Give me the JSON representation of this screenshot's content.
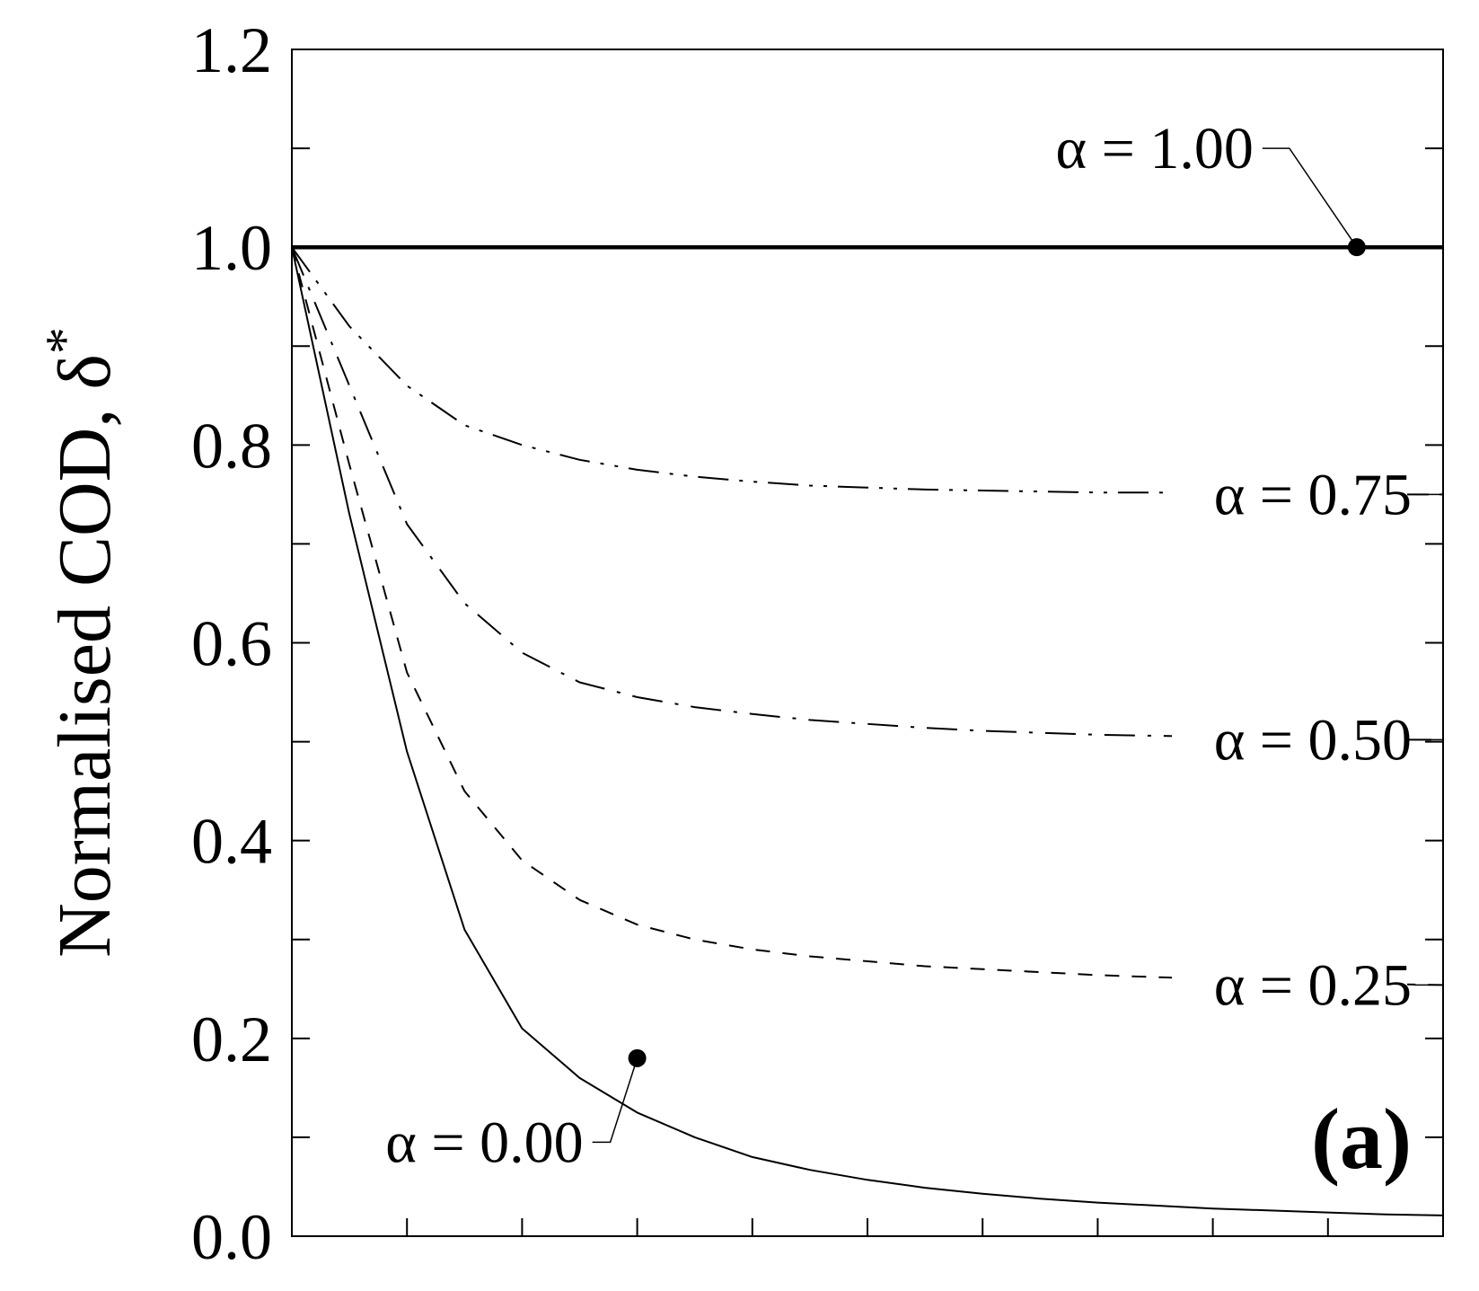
{
  "chart_data": {
    "type": "line",
    "title": "",
    "xlabel": "",
    "ylabel": "Normalised COD, δ",
    "ylabel_superscript": "*",
    "ylim": [
      0,
      1.2
    ],
    "xlim": [
      0,
      10
    ],
    "yticks": [
      "0.0",
      "0.2",
      "0.4",
      "0.6",
      "0.8",
      "1.0",
      "1.2"
    ],
    "grid": false,
    "legend": "none",
    "panel_label": "(a)",
    "x": [
      0,
      0.5,
      1,
      1.5,
      2,
      2.5,
      3,
      3.5,
      4,
      4.5,
      5,
      5.5,
      6,
      6.5,
      7,
      7.5,
      8,
      8.5,
      9,
      9.5,
      10
    ],
    "series": [
      {
        "name": "α = 1.00",
        "style": "solid-thick",
        "values": [
          1.0,
          1.0,
          1.0,
          1.0,
          1.0,
          1.0,
          1.0,
          1.0,
          1.0,
          1.0,
          1.0,
          1.0,
          1.0,
          1.0,
          1.0,
          1.0,
          1.0,
          1.0,
          1.0,
          1.0,
          1.0
        ]
      },
      {
        "name": "α = 0.75",
        "style": "dash-dot-dot",
        "values": [
          1.0,
          0.92,
          0.86,
          0.82,
          0.8,
          0.785,
          0.775,
          0.768,
          0.763,
          0.759,
          0.757,
          0.755,
          0.754,
          0.753,
          0.752,
          0.752,
          0.751,
          0.751,
          0.751,
          0.75,
          0.75
        ]
      },
      {
        "name": "α = 0.50",
        "style": "dash-dot",
        "values": [
          1.0,
          0.86,
          0.72,
          0.64,
          0.59,
          0.56,
          0.545,
          0.535,
          0.528,
          0.522,
          0.518,
          0.514,
          0.511,
          0.509,
          0.507,
          0.506,
          0.505,
          0.504,
          0.503,
          0.502,
          0.502
        ]
      },
      {
        "name": "α = 0.25",
        "style": "dashed",
        "values": [
          1.0,
          0.78,
          0.57,
          0.45,
          0.38,
          0.34,
          0.315,
          0.3,
          0.29,
          0.283,
          0.278,
          0.273,
          0.27,
          0.267,
          0.264,
          0.262,
          0.26,
          0.258,
          0.257,
          0.255,
          0.254
        ]
      },
      {
        "name": "α = 0.00",
        "style": "solid-thin",
        "values": [
          1.0,
          0.73,
          0.49,
          0.31,
          0.21,
          0.16,
          0.125,
          0.1,
          0.08,
          0.067,
          0.057,
          0.049,
          0.043,
          0.038,
          0.034,
          0.031,
          0.028,
          0.026,
          0.024,
          0.022,
          0.021
        ]
      }
    ],
    "annotations": [
      {
        "text": "α = 1.00",
        "series": "α = 1.00",
        "marker_x": 9.25,
        "marker_y": 1.0
      },
      {
        "text": "α = 0.75",
        "series": "α = 0.75"
      },
      {
        "text": "α = 0.50",
        "series": "α = 0.50"
      },
      {
        "text": "α = 0.25",
        "series": "α = 0.25"
      },
      {
        "text": "α = 0.00",
        "series": "α = 0.00",
        "marker_x": 3.0,
        "marker_y": 0.18
      }
    ]
  }
}
